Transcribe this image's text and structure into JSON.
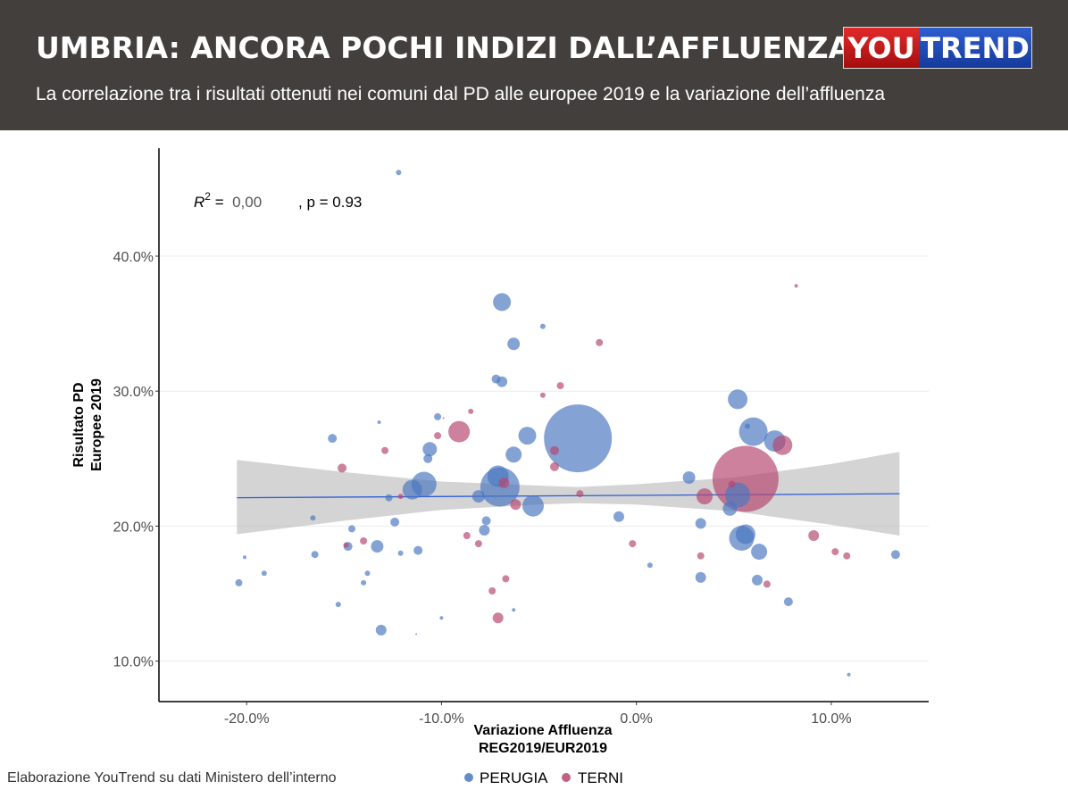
{
  "header": {
    "title": "UMBRIA: ANCORA POCHI INDIZI DALL’AFFLUENZA",
    "subtitle": "La correlazione tra i risultati ottenuti nei comuni dal PD alle europee 2019 e la variazione dell’affluenza",
    "logo_left": "YOU",
    "logo_right": "TREND"
  },
  "source": "Elaborazione YouTrend su dati Ministero dell’interno",
  "colors": {
    "header_bg": "#423f3c",
    "perugia": "#4a78c0",
    "terni": "#b5466e",
    "regression_line": "#2b5bd7",
    "confidence_band": "#bdbdbd"
  },
  "chart_data": {
    "type": "scatter",
    "xlabel_lines": [
      "Variazione Affluenza",
      "REG2019/EUR2019"
    ],
    "ylabel_lines": [
      "Risultato PD",
      "Europee 2019"
    ],
    "xlim": [
      -24.5,
      15
    ],
    "ylim": [
      7,
      48
    ],
    "xticks": [
      -20,
      -10,
      0,
      10
    ],
    "xtick_labels": [
      "-20.0%",
      "-10.0%",
      "0.0%",
      "10.0%"
    ],
    "yticks": [
      10,
      20,
      30,
      40
    ],
    "ytick_labels": [
      "10.0%",
      "20.0%",
      "30.0%",
      "40.0%"
    ],
    "annotation": {
      "r2_label": "R",
      "r2_exp": "2",
      "r2_eq": " =  ",
      "r2_value": "0,00",
      "p_text": ", p = 0.93"
    },
    "legend": [
      "PERUGIA",
      "TERNI"
    ],
    "legend_position": "bottom",
    "regression": {
      "x": [
        -20.5,
        13.5
      ],
      "y": [
        22.1,
        22.4
      ]
    },
    "band": {
      "x": [
        -20.5,
        -15,
        -10,
        -5,
        -3,
        0,
        5,
        10,
        13.5
      ],
      "lower": [
        19.4,
        20.4,
        21.2,
        21.6,
        21.7,
        21.6,
        21.1,
        20.1,
        19.3
      ],
      "upper": [
        24.9,
        24.0,
        23.3,
        23.0,
        22.9,
        23.1,
        23.6,
        24.6,
        25.5
      ]
    },
    "series": [
      {
        "name": "PERUGIA",
        "points": [
          [
            -12.2,
            46.2,
            3
          ],
          [
            -6.9,
            36.6,
            10
          ],
          [
            -4.8,
            34.8,
            3
          ],
          [
            -6.3,
            33.5,
            7
          ],
          [
            -7.2,
            30.9,
            5
          ],
          [
            -6.9,
            30.7,
            6
          ],
          [
            5.2,
            29.4,
            11
          ],
          [
            -10.2,
            28.1,
            4
          ],
          [
            -13.2,
            27.7,
            2
          ],
          [
            6,
            27,
            16
          ],
          [
            5.7,
            27.4,
            3
          ],
          [
            7.1,
            26.3,
            12
          ],
          [
            -5.6,
            26.7,
            10
          ],
          [
            -15.6,
            26.5,
            5
          ],
          [
            -10.6,
            25.7,
            8
          ],
          [
            -6.3,
            25.3,
            9
          ],
          [
            -10.7,
            25,
            5
          ],
          [
            -3,
            26.5,
            38
          ],
          [
            2.7,
            23.6,
            7
          ],
          [
            -7.1,
            23.7,
            12
          ],
          [
            -7,
            22.9,
            22
          ],
          [
            -10.9,
            23.1,
            14
          ],
          [
            -11.5,
            22.7,
            11
          ],
          [
            -8.1,
            22.2,
            7
          ],
          [
            -12.7,
            22.1,
            4
          ],
          [
            -5.3,
            21.5,
            12
          ],
          [
            5.2,
            22.3,
            14
          ],
          [
            4.8,
            21.3,
            8
          ],
          [
            -0.9,
            20.7,
            6
          ],
          [
            3.3,
            20.2,
            6
          ],
          [
            -16.6,
            20.6,
            3
          ],
          [
            -7.7,
            20.4,
            5
          ],
          [
            -12.4,
            20.3,
            5
          ],
          [
            -7.8,
            19.7,
            6
          ],
          [
            -14.6,
            19.8,
            4
          ],
          [
            -14.8,
            18.5,
            5
          ],
          [
            5.4,
            19.1,
            14
          ],
          [
            5.6,
            19.4,
            11
          ],
          [
            -13.3,
            18.5,
            7
          ],
          [
            -11.2,
            18.2,
            5
          ],
          [
            -12.1,
            18,
            3
          ],
          [
            -16.5,
            17.9,
            4
          ],
          [
            6.3,
            18.1,
            9
          ],
          [
            -20.1,
            17.7,
            2
          ],
          [
            13.3,
            17.9,
            5
          ],
          [
            0.7,
            17.1,
            3
          ],
          [
            -19.1,
            16.5,
            3
          ],
          [
            -13.8,
            16.5,
            3
          ],
          [
            3.3,
            16.2,
            6
          ],
          [
            6.2,
            16,
            6
          ],
          [
            -20.4,
            15.8,
            4
          ],
          [
            -14,
            15.8,
            3
          ],
          [
            -15.3,
            14.2,
            3
          ],
          [
            7.8,
            14.4,
            5
          ],
          [
            -6.3,
            13.8,
            2
          ],
          [
            -10,
            13.2,
            2
          ],
          [
            -13.1,
            12.3,
            6
          ],
          [
            -11.3,
            12,
            1
          ],
          [
            10.9,
            9,
            2
          ]
        ]
      },
      {
        "name": "TERNI",
        "points": [
          [
            8.2,
            37.8,
            2
          ],
          [
            -1.9,
            33.6,
            4
          ],
          [
            -3.9,
            30.4,
            4
          ],
          [
            -4.8,
            29.7,
            3
          ],
          [
            -8.5,
            28.5,
            3
          ],
          [
            -9.9,
            28,
            1
          ],
          [
            -9.1,
            27,
            12
          ],
          [
            -10.2,
            26.7,
            4
          ],
          [
            7.5,
            26,
            11
          ],
          [
            -4.2,
            25.6,
            5
          ],
          [
            -12.9,
            25.6,
            4
          ],
          [
            -15.1,
            24.3,
            5
          ],
          [
            -4.2,
            24.4,
            5
          ],
          [
            5.6,
            23.5,
            37
          ],
          [
            4.9,
            23.1,
            4
          ],
          [
            -6.8,
            23.2,
            6
          ],
          [
            -2.9,
            22.4,
            4
          ],
          [
            3.5,
            22.2,
            9
          ],
          [
            -12.1,
            22.2,
            3
          ],
          [
            -6.2,
            21.6,
            6
          ],
          [
            -8.7,
            19.3,
            4
          ],
          [
            9.1,
            19.3,
            6
          ],
          [
            -14,
            18.9,
            4
          ],
          [
            -8.1,
            18.7,
            4
          ],
          [
            -0.2,
            18.7,
            4
          ],
          [
            -14.9,
            18.6,
            3
          ],
          [
            10.2,
            18.1,
            4
          ],
          [
            10.8,
            17.8,
            4
          ],
          [
            3.3,
            17.8,
            4
          ],
          [
            -6.7,
            16.1,
            4
          ],
          [
            6.7,
            15.7,
            4
          ],
          [
            -7.4,
            15.2,
            4
          ],
          [
            -7.1,
            13.2,
            6
          ]
        ]
      }
    ]
  }
}
